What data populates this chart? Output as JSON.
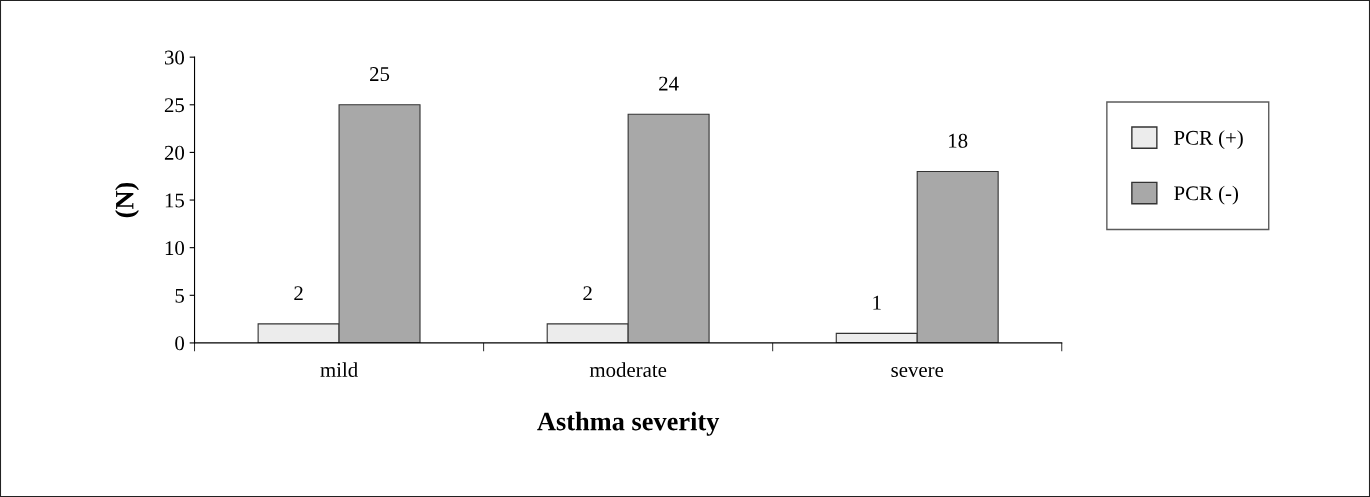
{
  "chart_data": {
    "type": "bar",
    "xlabel": "Asthma severity",
    "ylabel": "(N)",
    "categories": [
      "mild",
      "moderate",
      "severe"
    ],
    "series": [
      {
        "name": "PCR (+)",
        "color": "#ececec",
        "values": [
          2,
          2,
          1
        ]
      },
      {
        "name": "PCR (-)",
        "color": "#a8a8a8",
        "values": [
          25,
          24,
          18
        ]
      }
    ],
    "ylim": [
      0,
      30
    ],
    "yticks": [
      0,
      5,
      10,
      15,
      20,
      25,
      30
    ],
    "data_labels": true,
    "legend": "right",
    "grid": false
  }
}
